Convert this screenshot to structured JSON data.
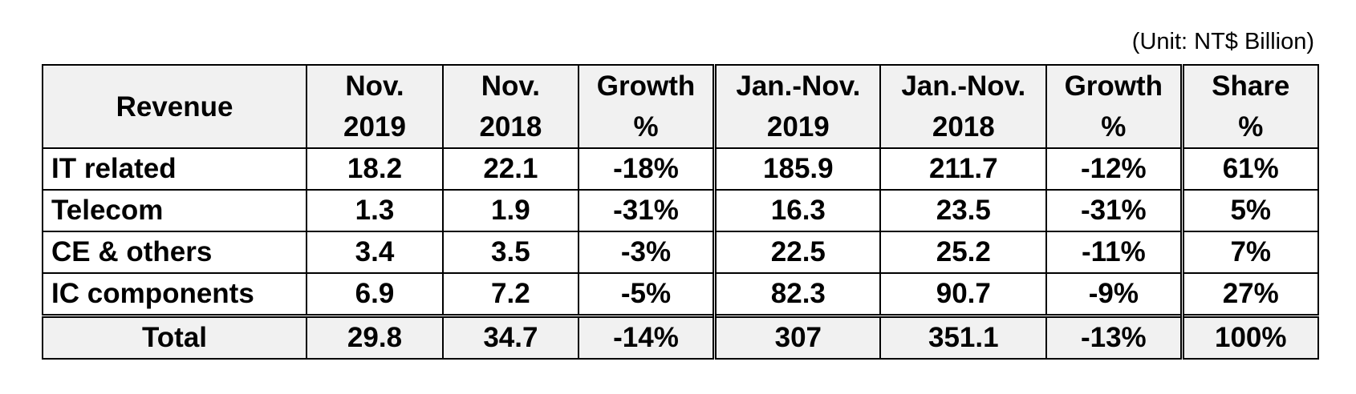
{
  "unit_note": "(Unit: NT$ Billion)",
  "chart_data": {
    "type": "table",
    "columns": [
      {
        "line1": "Revenue",
        "line2": ""
      },
      {
        "line1": "Nov.",
        "line2": "2019"
      },
      {
        "line1": "Nov.",
        "line2": "2018"
      },
      {
        "line1": "Growth",
        "line2": "%"
      },
      {
        "line1": "Jan.-Nov.",
        "line2": "2019"
      },
      {
        "line1": "Jan.-Nov.",
        "line2": "2018"
      },
      {
        "line1": "Growth",
        "line2": "%"
      },
      {
        "line1": "Share",
        "line2": "%"
      }
    ],
    "rows": [
      [
        "IT related",
        "18.2",
        "22.1",
        "-18%",
        "185.9",
        "211.7",
        "-12%",
        "61%"
      ],
      [
        "Telecom",
        "1.3",
        "1.9",
        "-31%",
        "16.3",
        "23.5",
        "-31%",
        "5%"
      ],
      [
        "CE & others",
        "3.4",
        "3.5",
        "-3%",
        "22.5",
        "25.2",
        "-11%",
        "7%"
      ],
      [
        "IC components",
        "6.9",
        "7.2",
        "-5%",
        "82.3",
        "90.7",
        "-9%",
        "27%"
      ]
    ],
    "total": [
      "Total",
      "29.8",
      "34.7",
      "-14%",
      "307",
      "351.1",
      "-13%",
      "100%"
    ]
  }
}
